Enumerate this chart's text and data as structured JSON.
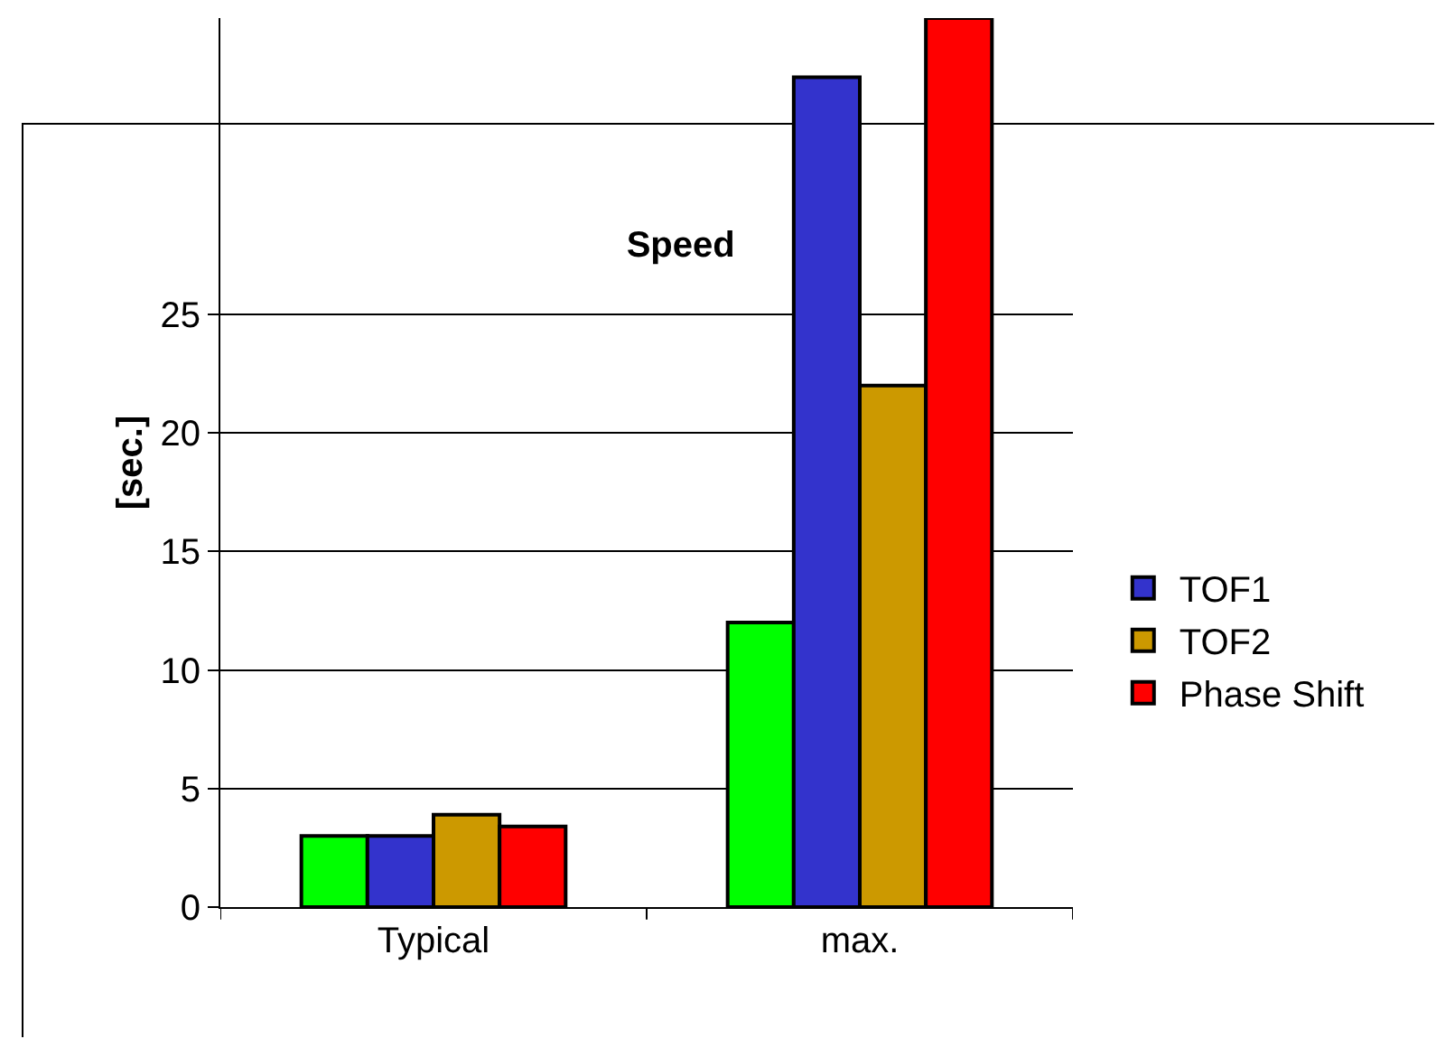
{
  "chart_data": {
    "type": "bar",
    "title": "Speed",
    "ylabel": "[sec.]",
    "categories": [
      "Typical",
      "max."
    ],
    "series": [
      {
        "color": "#00ff00",
        "values": [
          3,
          12
        ]
      },
      {
        "name": "TOF1",
        "color": "#3333cc",
        "values": [
          3,
          35
        ]
      },
      {
        "name": "TOF2",
        "color": "#cc9900",
        "values": [
          3.9,
          22
        ]
      },
      {
        "name": "Phase Shift",
        "color": "#ff0000",
        "values": [
          3.4,
          37.5
        ]
      }
    ],
    "ylim": [
      0,
      37.5
    ],
    "yticks": [
      0,
      5,
      10,
      15,
      20,
      25
    ],
    "grid": "y",
    "legend": "right"
  }
}
